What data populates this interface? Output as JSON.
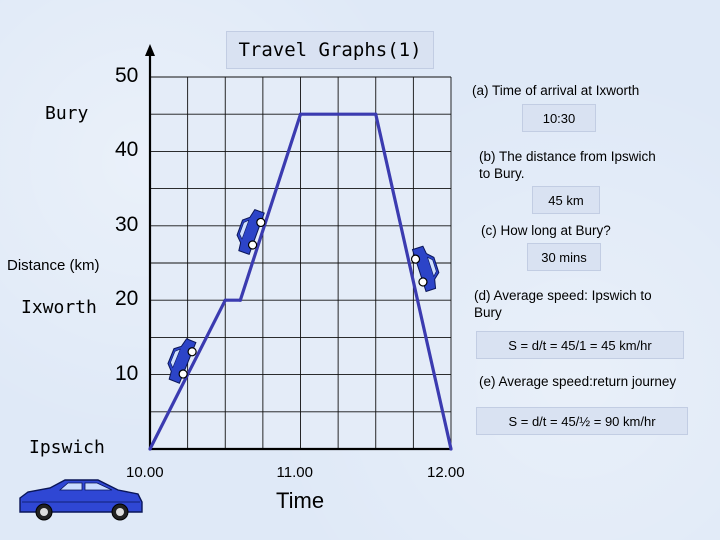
{
  "title": "Travel Graphs(1)",
  "places": {
    "bury": "Bury",
    "ixworth": "Ixworth",
    "ipswich": "Ipswich"
  },
  "questions": {
    "a": {
      "text": "(a) Time of arrival at Ixworth",
      "answer": "10:30"
    },
    "b": {
      "text_line1": "(b) The distance from Ipswich",
      "text_line2": "to Bury.",
      "answer": "45 km"
    },
    "c": {
      "text": "(c) How long at Bury?",
      "answer": "30 mins"
    },
    "d": {
      "text_line1": "(d) Average speed: Ipswich to",
      "text_line2": "Bury",
      "answer": "S = d/t = 45/1 = 45 km/hr"
    },
    "e": {
      "text": "(e) Average speed:return journey",
      "answer": "S = d/t = 45/½  = 90 km/hr"
    }
  },
  "chart_data": {
    "type": "line",
    "title": "Travel Graphs(1)",
    "xlabel": "Time",
    "ylabel": "Distance (km)",
    "x_ticks": [
      {
        "value": 10.0,
        "label": "10.00"
      },
      {
        "value": 11.0,
        "label": "11.00"
      },
      {
        "value": 12.0,
        "label": "12.00"
      }
    ],
    "y_ticks": [
      10,
      20,
      30,
      40,
      50
    ],
    "xlim": [
      10.0,
      12.0
    ],
    "ylim": [
      0,
      50
    ],
    "grid": true,
    "line_color": "#3b3bb0",
    "series": [
      {
        "points": [
          {
            "x": 10.0,
            "y": 0
          },
          {
            "x": 10.5,
            "y": 20
          },
          {
            "x": 10.6,
            "y": 20
          },
          {
            "x": 11.0,
            "y": 45
          },
          {
            "x": 11.5,
            "y": 45
          },
          {
            "x": 12.0,
            "y": 0
          }
        ]
      }
    ]
  }
}
